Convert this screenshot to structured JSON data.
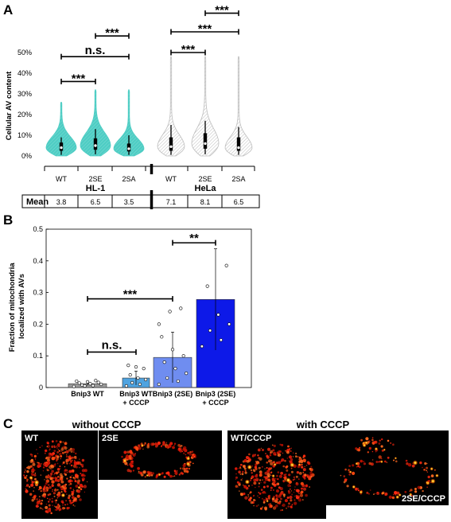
{
  "panels": {
    "a": "A",
    "b": "B",
    "c": "C"
  },
  "colors": {
    "hl1": "#4ecdc4",
    "hela": "#c8c8c8",
    "bar_wt": "#9a9a9a",
    "bar_wt_cccp": "#4fa3e0",
    "bar_2se": "#6f8df0",
    "bar_2se_cccp": "#0d19e8"
  },
  "chart_data": [
    {
      "type": "violin",
      "ylabel": "Cellular AV content",
      "ylim": [
        0,
        50
      ],
      "yticks": [
        "0%",
        "10%",
        "20%",
        "30%",
        "40%",
        "50%"
      ],
      "ytick_values": [
        0,
        10,
        20,
        30,
        40,
        50
      ],
      "groups": [
        "HL-1",
        "HeLa"
      ],
      "categories": [
        "WT",
        "2SE",
        "2SA",
        "WT",
        "2SE",
        "2SA"
      ],
      "category_group": [
        0,
        0,
        0,
        1,
        1,
        1
      ],
      "medians": [
        4,
        5,
        3.5,
        4.5,
        6,
        4
      ],
      "q1": [
        2.5,
        3,
        2.2,
        2.5,
        3.5,
        2.5
      ],
      "q3": [
        6.5,
        8.5,
        6,
        9,
        11,
        9
      ],
      "whisker_low": [
        0.5,
        0.8,
        0.5,
        0.5,
        0.8,
        0.5
      ],
      "whisker_high": [
        9,
        13,
        10,
        15,
        17,
        14
      ],
      "max": [
        26,
        32,
        32,
        48,
        48,
        48
      ],
      "mean_label": "Mean",
      "means": [
        "3.8",
        "6.5",
        "3.5",
        "7.1",
        "8.1",
        "6.5"
      ],
      "comparisons": [
        {
          "from": 0,
          "to": 1,
          "label": "***",
          "level": 36
        },
        {
          "from": 0,
          "to": 2,
          "label": "n.s.",
          "level": 48
        },
        {
          "from": 1,
          "to": 2,
          "label": "***",
          "level": 58
        },
        {
          "from": 3,
          "to": 4,
          "label": "***",
          "level": 50
        },
        {
          "from": 3,
          "to": 5,
          "label": "***",
          "level": 60
        },
        {
          "from": 4,
          "to": 5,
          "label": "***",
          "level": 69
        }
      ]
    },
    {
      "type": "bar",
      "ylabel": "Fraction of mitochondria localized with AVs",
      "ylabel_lines": [
        "Fraction of mitochondria",
        "localized with AVs"
      ],
      "ylim": [
        0,
        0.5
      ],
      "yticks": [
        "0",
        "0.1",
        "0.2",
        "0.3",
        "0.4",
        "0.5"
      ],
      "ytick_values": [
        0,
        0.1,
        0.2,
        0.3,
        0.4,
        0.5
      ],
      "categories": [
        "Bnip3 WT",
        "Bnip3 WT + CCCP",
        "Bnip3 (2SE)",
        "Bnip3 (2SE) + CCCP"
      ],
      "category_lines": [
        [
          "Bnip3 WT"
        ],
        [
          "Bnip3 WT",
          "+ CCCP"
        ],
        [
          "Bnip3 (2SE)"
        ],
        [
          "Bnip3 (2SE)",
          "+ CCCP"
        ]
      ],
      "values": [
        0.012,
        0.03,
        0.095,
        0.278
      ],
      "errors": [
        0.006,
        0.022,
        0.08,
        0.16
      ],
      "points": [
        [
          0.003,
          0.006,
          0.008,
          0.01,
          0.012,
          0.014,
          0.016,
          0.018,
          0.02,
          0.022,
          0.005
        ],
        [
          0.005,
          0.01,
          0.015,
          0.025,
          0.03,
          0.04,
          0.06,
          0.065,
          0.07
        ],
        [
          0.01,
          0.02,
          0.03,
          0.045,
          0.06,
          0.08,
          0.1,
          0.12,
          0.16,
          0.25,
          0.24,
          0.2
        ],
        [
          0.13,
          0.15,
          0.18,
          0.2,
          0.23,
          0.32,
          0.385
        ]
      ],
      "comparisons": [
        {
          "from": 0,
          "to": 1,
          "label": "n.s.",
          "level": 0.112
        },
        {
          "from": 0,
          "to": 2,
          "label": "***",
          "level": 0.28
        },
        {
          "from": 2,
          "to": 3,
          "label": "**",
          "level": 0.457
        }
      ]
    }
  ],
  "panel_c": {
    "title_left": "without CCCP",
    "title_right": "with CCCP",
    "images": [
      {
        "label": "WT"
      },
      {
        "label": "2SE"
      },
      {
        "label": "WT/CCCP"
      },
      {
        "label": "2SE/CCCP"
      }
    ]
  }
}
